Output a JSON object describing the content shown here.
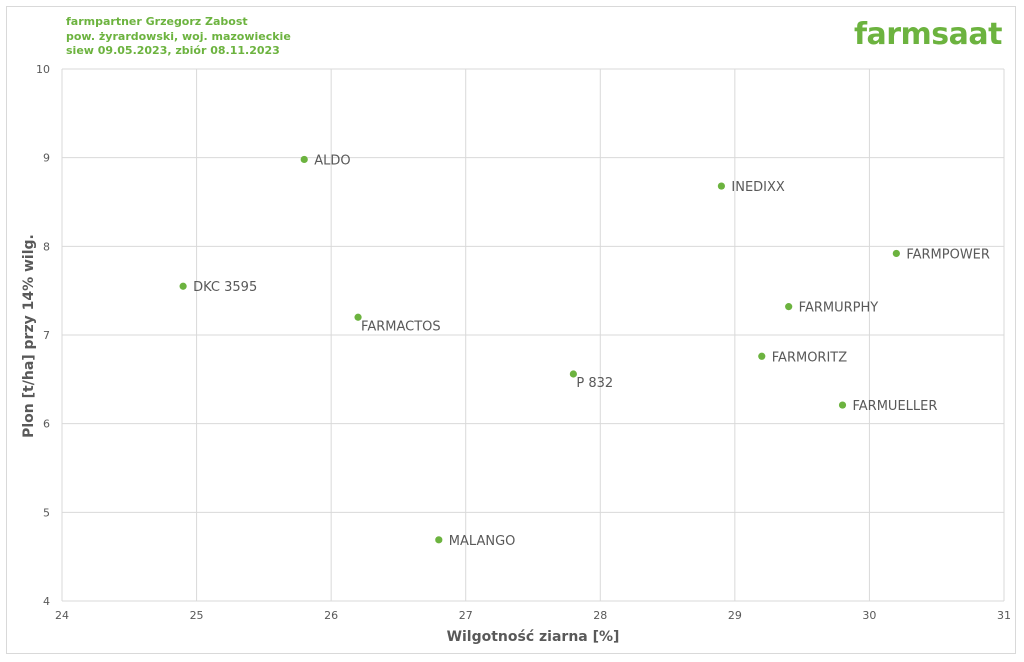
{
  "header": {
    "line1": "farmpartner Grzegorz Zabost",
    "line2": "pow. żyrardowski, woj. mazowieckie",
    "line3": "siew 09.05.2023, zbiór 08.11.2023"
  },
  "logo": "farmsaat",
  "colors": {
    "accent": "#6cb33f",
    "grid": "#d9d9d9",
    "text": "#595959"
  },
  "chart_data": {
    "type": "scatter",
    "xlabel": "Wilgotność ziarna [%]",
    "ylabel": "Plon [t/ha] przy 14% wilg.",
    "xlim": [
      24,
      31
    ],
    "ylim": [
      4,
      10
    ],
    "xticks": [
      "24",
      "25",
      "26",
      "27",
      "28",
      "29",
      "30",
      "31"
    ],
    "yticks": [
      "4",
      "5",
      "6",
      "7",
      "8",
      "9",
      "10"
    ],
    "grid": true,
    "points": [
      {
        "label": "ALDO",
        "x": 25.8,
        "y": 8.98
      },
      {
        "label": "INEDIXX",
        "x": 28.9,
        "y": 8.68
      },
      {
        "label": "FARMPOWER",
        "x": 30.2,
        "y": 7.92
      },
      {
        "label": "DKC 3595",
        "x": 24.9,
        "y": 7.55
      },
      {
        "label": "FARMURPHY",
        "x": 29.4,
        "y": 7.32
      },
      {
        "label": "FARMACTOS",
        "x": 26.2,
        "y": 7.2
      },
      {
        "label": "FARMORITZ",
        "x": 29.2,
        "y": 6.76
      },
      {
        "label": "P 832",
        "x": 27.8,
        "y": 6.56
      },
      {
        "label": "FARMUELLER",
        "x": 29.8,
        "y": 6.21
      },
      {
        "label": "MALANGO",
        "x": 26.8,
        "y": 4.69
      }
    ]
  }
}
